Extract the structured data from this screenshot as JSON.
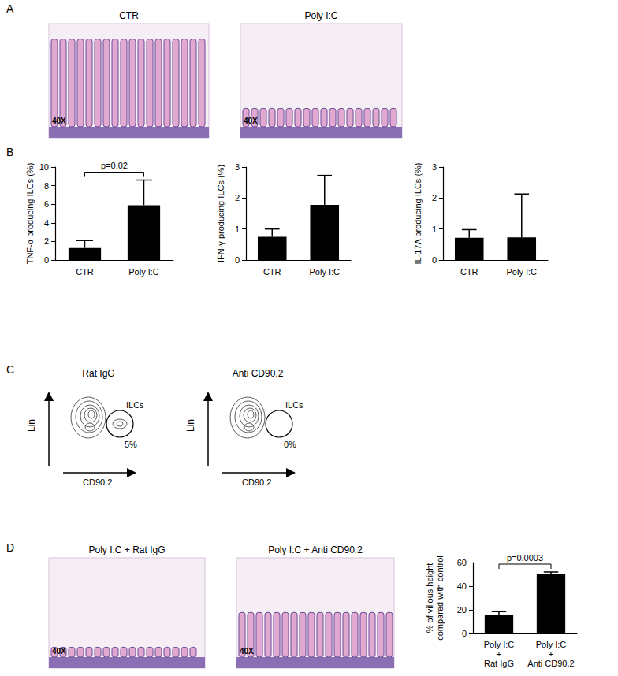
{
  "figure": {
    "panels": [
      {
        "label": "A",
        "images": [
          {
            "title": "CTR",
            "magnification": "40X"
          },
          {
            "title": "Poly I:C",
            "magnification": "40X"
          }
        ]
      },
      {
        "label": "B"
      },
      {
        "label": "C",
        "flow_plots": [
          {
            "title": "Rat IgG",
            "y_axis": "Lin",
            "x_axis": "CD90.2",
            "gate": "ILCs",
            "gate_percent": "5%"
          },
          {
            "title": "Anti CD90.2",
            "y_axis": "Lin",
            "x_axis": "CD90.2",
            "gate": "ILCs",
            "gate_percent": "0%"
          }
        ]
      },
      {
        "label": "D",
        "images": [
          {
            "title": "Poly I:C + Rat IgG",
            "magnification": "40X"
          },
          {
            "title": "Poly I:C + Anti CD90.2",
            "magnification": "40X"
          }
        ]
      }
    ]
  },
  "chart_data": [
    {
      "type": "bar",
      "ylabel": "TNF-α producing ILCs (%)",
      "categories": [
        "CTR",
        "Poly I:C"
      ],
      "values": [
        1.3,
        5.9
      ],
      "errors": [
        0.8,
        2.7
      ],
      "color": "#000000",
      "ylim": [
        0,
        10
      ],
      "yticks": [
        0,
        2,
        4,
        6,
        8,
        10
      ],
      "grid": false,
      "annotation": "p=0.02"
    },
    {
      "type": "bar",
      "ylabel": "IFN-γ producing ILCs (%)",
      "categories": [
        "CTR",
        "Poly I:C"
      ],
      "values": [
        0.75,
        1.78
      ],
      "errors": [
        0.25,
        0.95
      ],
      "color": "#000000",
      "ylim": [
        0,
        3
      ],
      "yticks": [
        0,
        1,
        2,
        3
      ],
      "grid": false
    },
    {
      "type": "bar",
      "ylabel": "IL-17A producing ILCs (%)",
      "categories": [
        "CTR",
        "Poly I:C"
      ],
      "values": [
        0.72,
        0.73
      ],
      "errors": [
        0.26,
        1.4
      ],
      "color": "#000000",
      "ylim": [
        0,
        3
      ],
      "yticks": [
        0,
        1,
        2,
        3
      ],
      "grid": false
    },
    {
      "type": "bar",
      "ylabel": "% of villous height\ncompared with control",
      "categories": [
        "Poly I:C\n+\nRat IgG",
        "Poly I:C\n+\nAnti CD90.2"
      ],
      "values": [
        16,
        50.5
      ],
      "errors": [
        2.5,
        1.5
      ],
      "color": "#000000",
      "ylim": [
        0,
        60
      ],
      "yticks": [
        0,
        20,
        40,
        60
      ],
      "grid": false,
      "annotation": "p=0.0003"
    }
  ]
}
